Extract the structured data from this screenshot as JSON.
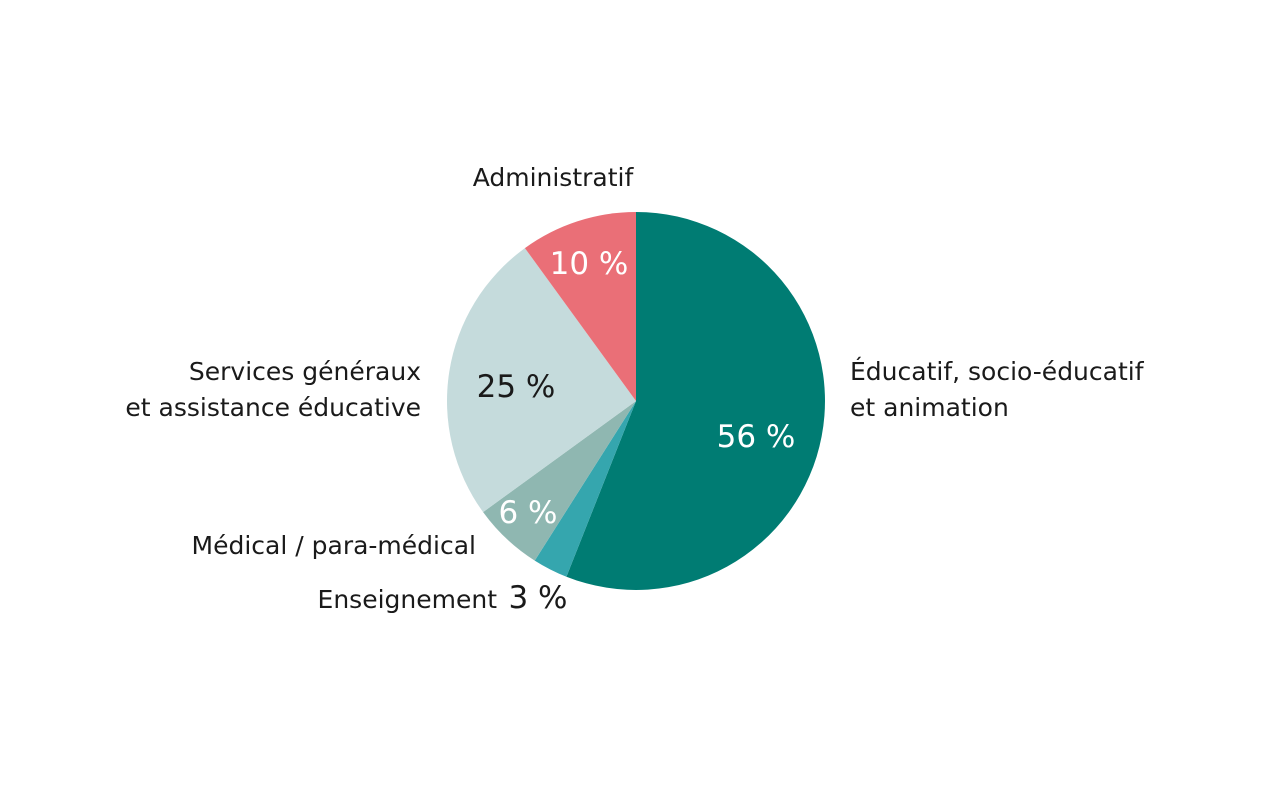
{
  "chart_data": {
    "type": "pie",
    "title": "",
    "slices": [
      {
        "category": "Éducatif, socio-éducatif et animation",
        "label_lines": [
          "Éducatif, socio-éducatif",
          "et animation"
        ],
        "value": 56,
        "value_label": "56 %",
        "color": "#007C73"
      },
      {
        "category": "Enseignement",
        "label_lines": [
          "Enseignement"
        ],
        "value": 3,
        "value_label": "3 %",
        "color": "#35A6AE"
      },
      {
        "category": "Médical / para-médical",
        "label_lines": [
          "Médical / para-médical"
        ],
        "value": 6,
        "value_label": "6 %",
        "color": "#8FB7B1"
      },
      {
        "category": "Services généraux et assistance éducative",
        "label_lines": [
          "Services généraux",
          "et assistance éducative"
        ],
        "value": 25,
        "value_label": "25 %",
        "color": "#C5DBDC"
      },
      {
        "category": "Administratif",
        "label_lines": [
          "Administratif"
        ],
        "value": 10,
        "value_label": "10 %",
        "color": "#EA6F77"
      }
    ],
    "start_angle_deg": 0,
    "direction": "clockwise"
  }
}
